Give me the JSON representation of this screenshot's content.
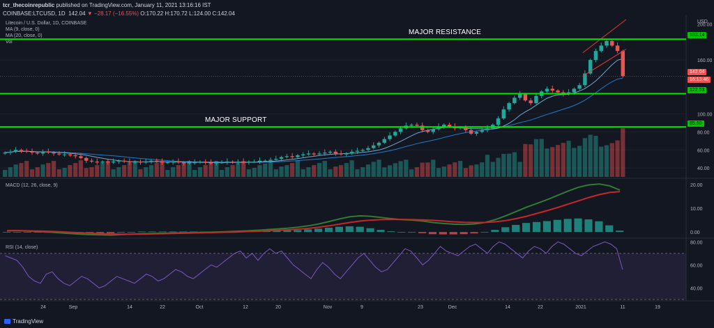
{
  "header": {
    "author": "tcr_thecoinrepublic",
    "published": "published on TradingView.com, January 11, 2021 13:16:16 IST",
    "symbol": "COINBASE:LTCUSD, 1D",
    "price": "142.04",
    "change": "▼ −28.17 (−16.55%)",
    "ohlc": "O:170.22 H:170.72 L:124.00 C:142.04"
  },
  "legend": {
    "title": "Litecoin / U.S. Dollar, 1D, COINBASE",
    "ma9": "MA (9, close, 0)",
    "ma20": "MA (20, close, 0)",
    "vol": "Vol",
    "macd": "MACD (12, 26, close, 9)",
    "rsi": "RSI (14, close)"
  },
  "annotations": {
    "resistance": "MAJOR RESISTANCE",
    "support": "MAJOR SUPPORT"
  },
  "badges": {
    "resistance": "183.14",
    "price": "142.04",
    "countdown": "16:13:46",
    "mid_support": "122.53",
    "support": "85.60"
  },
  "axis": {
    "currency": "USD",
    "price_ticks": [
      "200.00",
      "160.00",
      "100.00",
      "80.00",
      "60.00",
      "40.00"
    ],
    "macd_ticks": [
      "20.00",
      "10.00",
      "0.00"
    ],
    "rsi_ticks": [
      "80.00",
      "60.00",
      "40.00"
    ],
    "time_ticks": [
      "24",
      "Sep",
      "14",
      "22",
      "Oct",
      "12",
      "20",
      "Nov",
      "9",
      "23",
      "Dec",
      "14",
      "22",
      "2021",
      "11",
      "19"
    ]
  },
  "footer": {
    "brand": "TradingView"
  },
  "colors": {
    "bg": "#131722",
    "up": "#26a69a",
    "down": "#ef5350",
    "level": "#00e600",
    "rsi": "#7e57c2"
  },
  "chart_data": {
    "type": "candlestick",
    "symbol": "LTCUSD",
    "interval": "1D",
    "horizontal_levels": [
      {
        "name": "MAJOR RESISTANCE",
        "value": 183.14
      },
      {
        "value": 122.53
      },
      {
        "name": "MAJOR SUPPORT",
        "value": 85.6
      }
    ],
    "current_price": 142.04,
    "close_series": [
      57,
      58,
      60,
      59,
      58,
      57,
      56,
      58,
      57,
      56,
      55,
      55,
      54,
      53,
      51,
      48,
      47,
      46,
      47,
      46,
      47,
      48,
      47,
      46,
      47,
      46,
      47,
      48,
      47,
      46,
      46,
      47,
      46,
      45,
      46,
      46,
      47,
      46,
      45,
      46,
      46,
      47,
      46,
      47,
      46,
      47,
      47,
      48,
      48,
      49,
      50,
      52,
      53,
      52,
      54,
      55,
      56,
      55,
      56,
      57,
      58,
      56,
      55,
      56,
      58,
      59,
      60,
      62,
      65,
      68,
      72,
      76,
      80,
      84,
      87,
      88,
      87,
      82,
      80,
      83,
      86,
      88,
      86,
      84,
      85,
      82,
      78,
      80,
      82,
      84,
      88,
      95,
      105,
      112,
      118,
      122,
      115,
      112,
      120,
      125,
      128,
      126,
      124,
      122,
      124,
      128,
      132,
      145,
      160,
      170,
      176,
      181,
      176,
      170,
      142
    ],
    "macd_line": [
      0.5,
      0.6,
      0.4,
      0.2,
      0.0,
      -0.3,
      -0.6,
      -0.9,
      -1.1,
      -1.2,
      -1.3,
      -1.1,
      -0.9,
      -0.7,
      -0.6,
      -0.5,
      -0.4,
      -0.3,
      -0.2,
      -0.1,
      0.0,
      0.1,
      0.3,
      0.5,
      0.7,
      1.0,
      1.3,
      1.6,
      2.0,
      2.6,
      3.4,
      4.4,
      5.5,
      6.4,
      6.8,
      6.6,
      6.1,
      5.6,
      5.2,
      5.0,
      4.6,
      4.0,
      3.6,
      3.3,
      3.2,
      3.4,
      4.0,
      5.2,
      6.8,
      8.6,
      10.4,
      12.0,
      13.6,
      15.4,
      17.2,
      18.8,
      19.8,
      20.2,
      19.4,
      17.6
    ],
    "signal_line": [
      0.6,
      0.6,
      0.5,
      0.4,
      0.3,
      0.1,
      -0.1,
      -0.3,
      -0.5,
      -0.7,
      -0.8,
      -0.9,
      -0.9,
      -0.9,
      -0.8,
      -0.7,
      -0.6,
      -0.5,
      -0.4,
      -0.3,
      -0.2,
      -0.1,
      0.0,
      0.2,
      0.3,
      0.5,
      0.7,
      0.9,
      1.2,
      1.5,
      2.0,
      2.6,
      3.3,
      4.0,
      4.6,
      5.0,
      5.2,
      5.3,
      5.3,
      5.2,
      5.1,
      4.9,
      4.6,
      4.3,
      4.1,
      4.0,
      4.0,
      4.3,
      4.8,
      5.6,
      6.6,
      7.8,
      9.0,
      10.3,
      11.7,
      13.1,
      14.5,
      15.7,
      16.6,
      17.0
    ],
    "rsi_series": [
      68,
      66,
      64,
      58,
      50,
      46,
      44,
      52,
      54,
      48,
      44,
      42,
      46,
      50,
      48,
      44,
      40,
      42,
      46,
      50,
      48,
      46,
      44,
      48,
      52,
      50,
      46,
      48,
      52,
      56,
      54,
      50,
      48,
      52,
      56,
      60,
      58,
      62,
      66,
      70,
      72,
      66,
      70,
      64,
      70,
      74,
      70,
      72,
      66,
      60,
      56,
      52,
      48,
      56,
      62,
      58,
      52,
      48,
      54,
      60,
      66,
      70,
      64,
      58,
      54,
      56,
      62,
      68,
      74,
      72,
      66,
      60,
      64,
      70,
      76,
      72,
      70,
      68,
      72,
      76,
      78,
      74,
      70,
      76,
      80,
      78,
      74,
      70,
      66,
      72,
      76,
      74,
      70,
      76,
      80,
      78,
      74,
      70,
      68,
      72,
      76,
      78,
      80,
      78,
      74,
      56
    ],
    "rsi_levels": [
      70,
      30
    ],
    "macd_ylim": [
      -2,
      22
    ],
    "rsi_ylim": [
      30,
      82
    ],
    "price_ylim": [
      30,
      205
    ]
  }
}
